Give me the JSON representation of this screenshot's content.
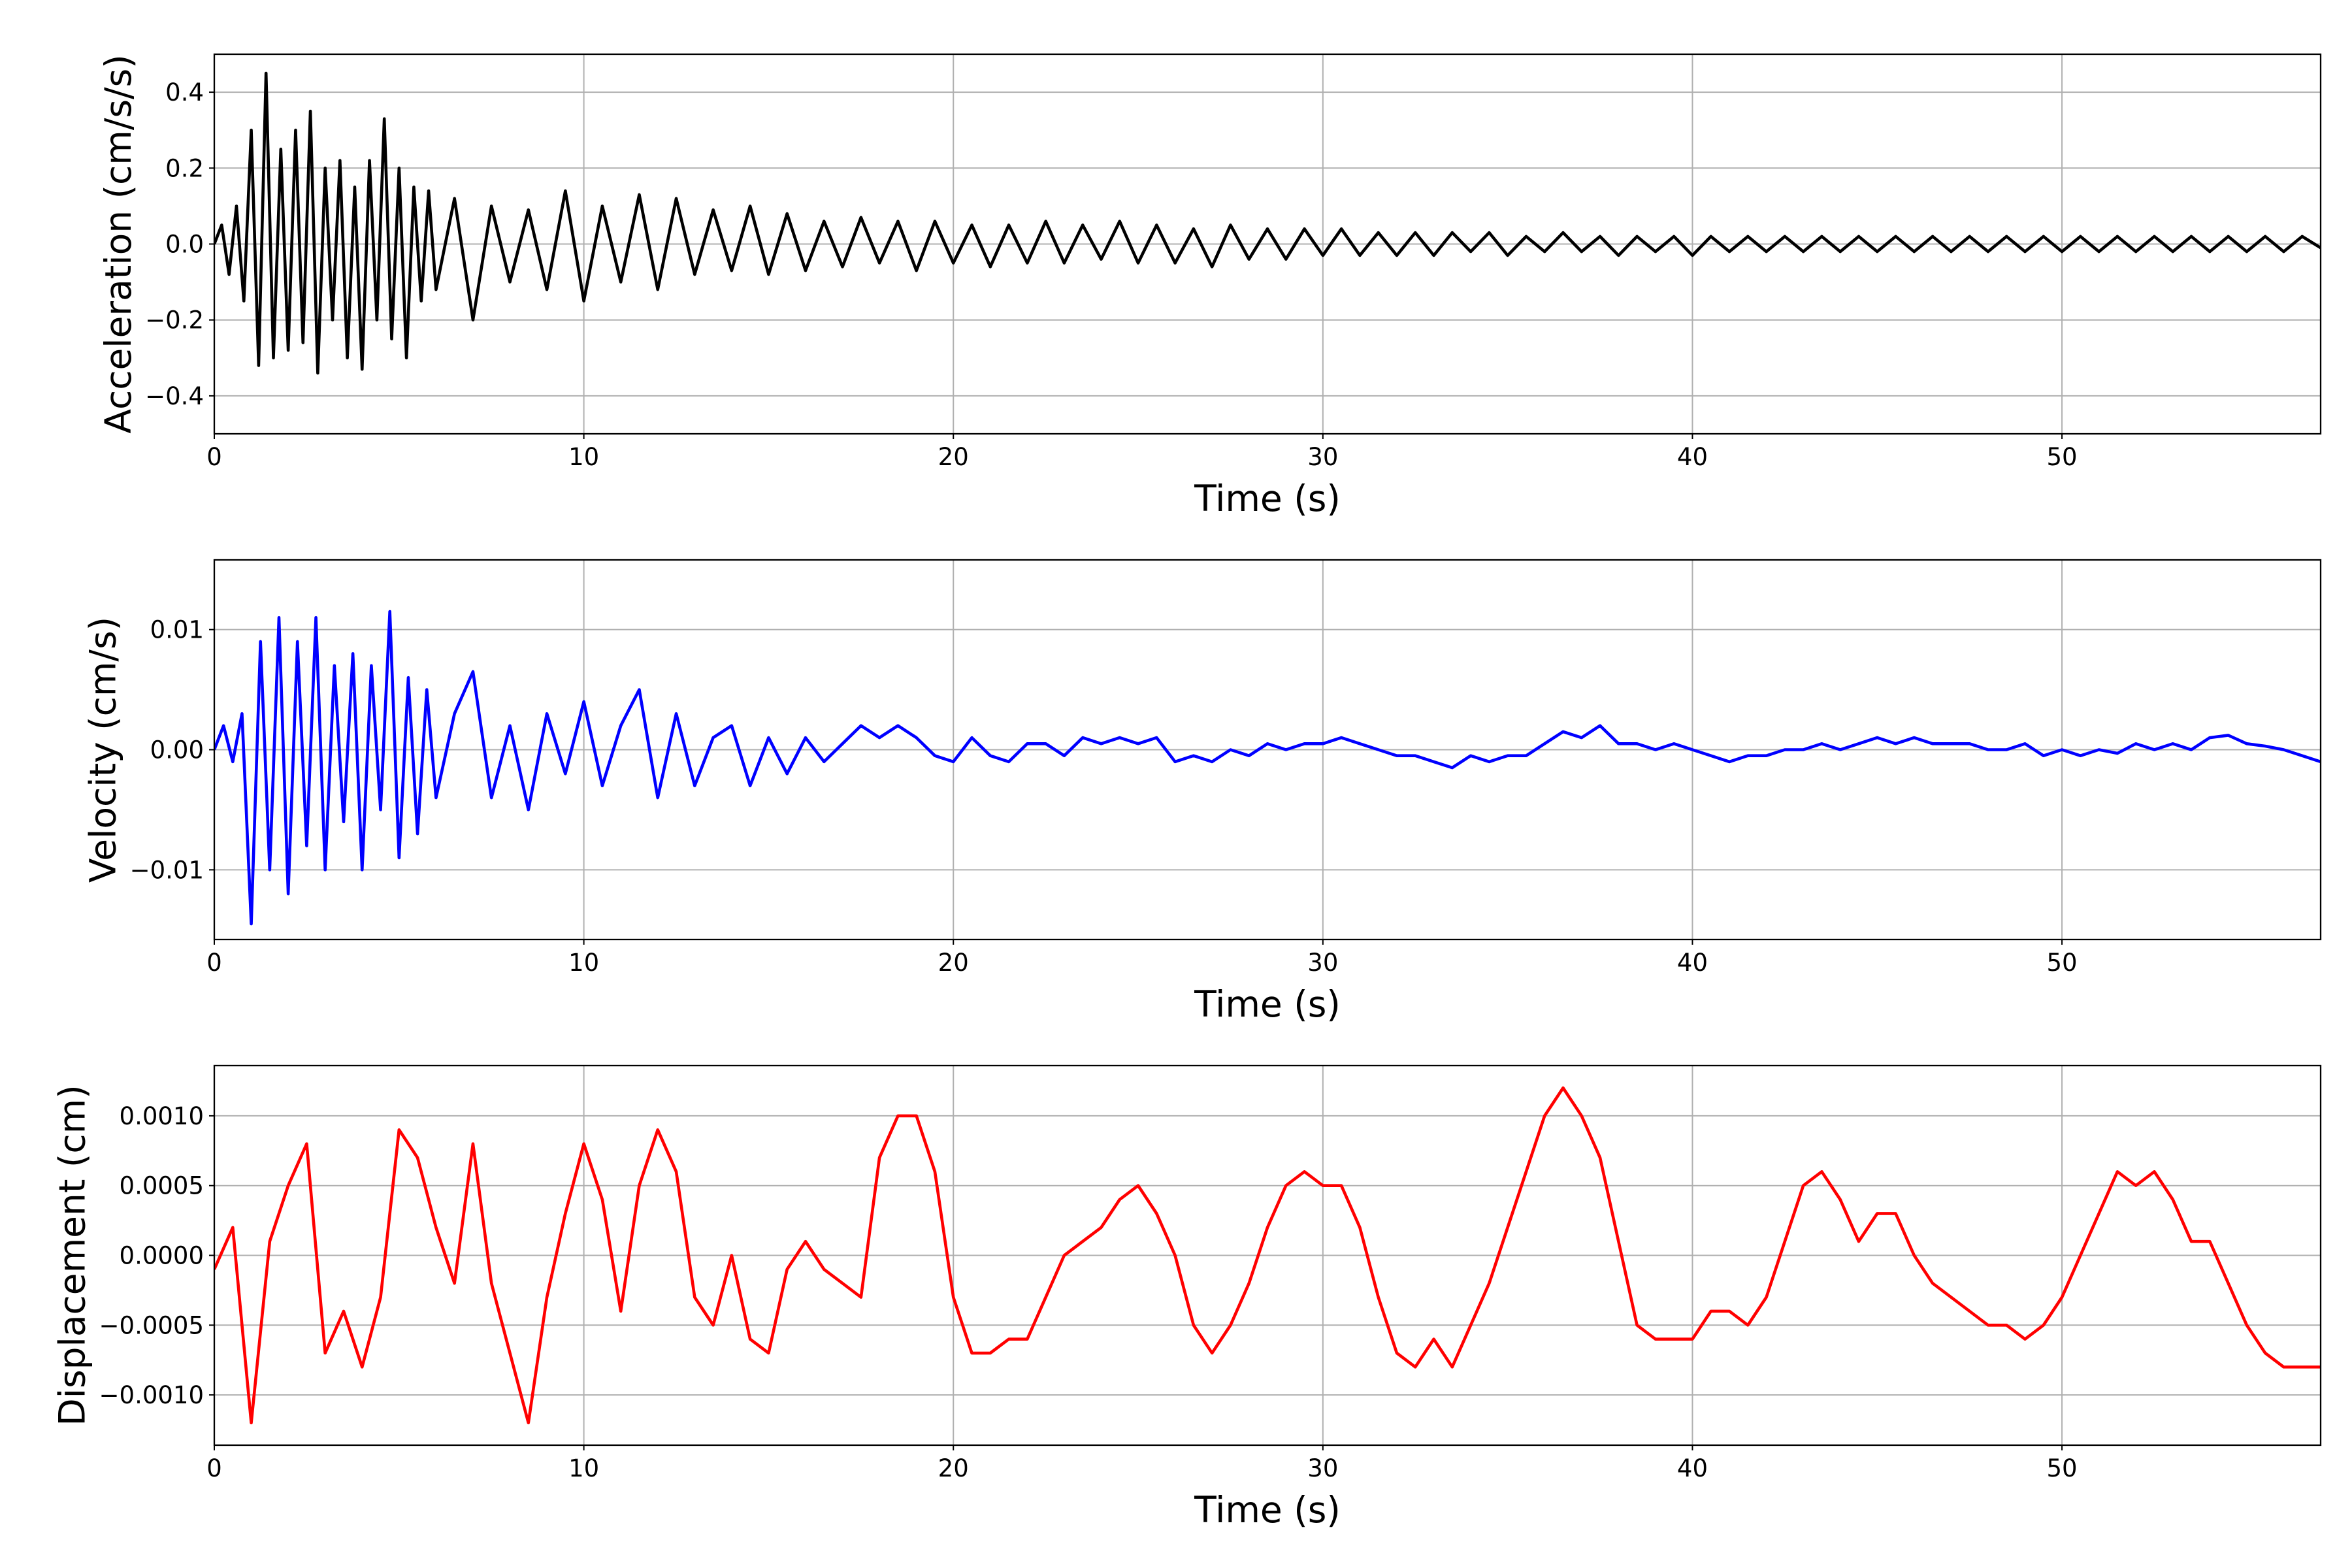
{
  "chart_data": [
    {
      "type": "line",
      "xlabel": "Time (s)",
      "ylabel": "Acceleration (cm/s/s)",
      "color": "#000000",
      "grid": true,
      "xlim": [
        0,
        57
      ],
      "xticks": [
        0,
        10,
        20,
        30,
        40,
        50
      ],
      "ylim": [
        -0.5,
        0.5
      ],
      "yticks": [
        {
          "value": -0.4,
          "label": "−0.4"
        },
        {
          "value": -0.2,
          "label": "−0.2"
        },
        {
          "value": 0,
          "label": "0.0"
        },
        0.2,
        0.4
      ],
      "x": [
        0,
        0.2,
        0.4,
        0.6,
        0.8,
        1.0,
        1.2,
        1.4,
        1.6,
        1.8,
        2.0,
        2.2,
        2.4,
        2.6,
        2.8,
        3.0,
        3.2,
        3.4,
        3.6,
        3.8,
        4.0,
        4.2,
        4.4,
        4.6,
        4.8,
        5.0,
        5.2,
        5.4,
        5.6,
        5.8,
        6.0,
        6.5,
        7,
        7.5,
        8,
        8.5,
        9,
        9.5,
        10,
        10.5,
        11,
        11.5,
        12,
        12.5,
        13,
        13.5,
        14,
        14.5,
        15,
        15.5,
        16,
        16.5,
        17,
        17.5,
        18,
        18.5,
        19,
        19.5,
        20,
        20.5,
        21,
        21.5,
        22,
        22.5,
        23,
        23.5,
        24,
        24.5,
        25,
        25.5,
        26,
        26.5,
        27,
        27.5,
        28,
        28.5,
        29,
        29.5,
        30,
        30.5,
        31,
        31.5,
        32,
        32.5,
        33,
        33.5,
        34,
        34.5,
        35,
        35.5,
        36,
        36.5,
        37,
        37.5,
        38,
        38.5,
        39,
        39.5,
        40,
        40.5,
        41,
        41.5,
        42,
        42.5,
        43,
        43.5,
        44,
        44.5,
        45,
        45.5,
        46,
        46.5,
        47,
        47.5,
        48,
        48.5,
        49,
        49.5,
        50,
        50.5,
        51,
        51.5,
        52,
        52.5,
        53,
        53.5,
        54,
        54.5,
        55,
        55.5,
        56,
        56.5,
        57
      ],
      "values": [
        0.0,
        0.05,
        -0.08,
        0.1,
        -0.15,
        0.3,
        -0.32,
        0.45,
        -0.3,
        0.25,
        -0.28,
        0.3,
        -0.26,
        0.35,
        -0.34,
        0.2,
        -0.2,
        0.22,
        -0.3,
        0.15,
        -0.33,
        0.22,
        -0.2,
        0.33,
        -0.25,
        0.2,
        -0.3,
        0.15,
        -0.15,
        0.14,
        -0.12,
        0.12,
        -0.2,
        0.1,
        -0.1,
        0.09,
        -0.12,
        0.14,
        -0.15,
        0.1,
        -0.1,
        0.13,
        -0.12,
        0.12,
        -0.08,
        0.09,
        -0.07,
        0.1,
        -0.08,
        0.08,
        -0.07,
        0.06,
        -0.06,
        0.07,
        -0.05,
        0.06,
        -0.07,
        0.06,
        -0.05,
        0.05,
        -0.06,
        0.05,
        -0.05,
        0.06,
        -0.05,
        0.05,
        -0.04,
        0.06,
        -0.05,
        0.05,
        -0.05,
        0.04,
        -0.06,
        0.05,
        -0.04,
        0.04,
        -0.04,
        0.04,
        -0.03,
        0.04,
        -0.03,
        0.03,
        -0.03,
        0.03,
        -0.03,
        0.03,
        -0.02,
        0.03,
        -0.03,
        0.02,
        -0.02,
        0.03,
        -0.02,
        0.02,
        -0.03,
        0.02,
        -0.02,
        0.02,
        -0.03,
        0.02,
        -0.02,
        0.02,
        -0.02,
        0.02,
        -0.02,
        0.02,
        -0.02,
        0.02,
        -0.02,
        0.02,
        -0.02,
        0.02,
        -0.02,
        0.02,
        -0.02,
        0.02,
        -0.02,
        0.02,
        -0.02,
        0.02,
        -0.02,
        0.02,
        -0.02,
        0.02,
        -0.02,
        0.02,
        -0.02,
        0.02,
        -0.02,
        0.02,
        -0.02,
        0.02,
        -0.01
      ]
    },
    {
      "type": "line",
      "xlabel": "Time (s)",
      "ylabel": "Velocity (cm/s)",
      "color": "#0000ff",
      "grid": true,
      "xlim": [
        0,
        57
      ],
      "xticks": [
        0,
        10,
        20,
        30,
        40,
        50
      ],
      "ylim": [
        -0.0158,
        0.0158
      ],
      "yticks": [
        {
          "value": -0.01,
          "label": "−0.01"
        },
        {
          "value": 0,
          "label": "0.00"
        },
        0.01
      ],
      "x": [
        0,
        0.25,
        0.5,
        0.75,
        1.0,
        1.25,
        1.5,
        1.75,
        2.0,
        2.25,
        2.5,
        2.75,
        3.0,
        3.25,
        3.5,
        3.75,
        4.0,
        4.25,
        4.5,
        4.75,
        5.0,
        5.25,
        5.5,
        5.75,
        6.0,
        6.5,
        7,
        7.5,
        8,
        8.5,
        9,
        9.5,
        10,
        10.5,
        11,
        11.5,
        12,
        12.5,
        13,
        13.5,
        14,
        14.5,
        15,
        15.5,
        16,
        16.5,
        17,
        17.5,
        18,
        18.5,
        19,
        19.5,
        20,
        20.5,
        21,
        21.5,
        22,
        22.5,
        23,
        23.5,
        24,
        24.5,
        25,
        25.5,
        26,
        26.5,
        27,
        27.5,
        28,
        28.5,
        29,
        29.5,
        30,
        30.5,
        31,
        31.5,
        32,
        32.5,
        33,
        33.5,
        34,
        34.5,
        35,
        35.5,
        36,
        36.5,
        37,
        37.5,
        38,
        38.5,
        39,
        39.5,
        40,
        40.5,
        41,
        41.5,
        42,
        42.5,
        43,
        43.5,
        44,
        44.5,
        45,
        45.5,
        46,
        46.5,
        47,
        47.5,
        48,
        48.5,
        49,
        49.5,
        50,
        50.5,
        51,
        51.5,
        52,
        52.5,
        53,
        53.5,
        54,
        54.5,
        55,
        55.5,
        56,
        56.5,
        57
      ],
      "values": [
        0,
        0.002,
        -0.001,
        0.003,
        -0.0145,
        0.009,
        -0.01,
        0.011,
        -0.012,
        0.009,
        -0.008,
        0.011,
        -0.01,
        0.007,
        -0.006,
        0.008,
        -0.01,
        0.007,
        -0.005,
        0.0115,
        -0.009,
        0.006,
        -0.007,
        0.005,
        -0.004,
        0.003,
        0.0065,
        -0.004,
        0.002,
        -0.005,
        0.003,
        -0.002,
        0.004,
        -0.003,
        0.002,
        0.005,
        -0.004,
        0.003,
        -0.003,
        0.001,
        0.002,
        -0.003,
        0.001,
        -0.002,
        0.001,
        -0.001,
        0.0005,
        0.002,
        0.001,
        0.002,
        0.001,
        -0.0005,
        -0.001,
        0.001,
        -0.0005,
        -0.001,
        0.0005,
        0.0005,
        -0.0005,
        0.001,
        0.0005,
        0.001,
        0.0005,
        0.001,
        -0.001,
        -0.0005,
        -0.001,
        0,
        -0.0005,
        0.0005,
        0,
        0.0005,
        0.0005,
        0.001,
        0.0005,
        0,
        -0.0005,
        -0.0005,
        -0.001,
        -0.0015,
        -0.0005,
        -0.001,
        -0.0005,
        -0.0005,
        0.0005,
        0.0015,
        0.001,
        0.002,
        0.0005,
        0.0005,
        0,
        0.0005,
        0,
        -0.0005,
        -0.001,
        -0.0005,
        -0.0005,
        0,
        0,
        0.0005,
        0,
        0.0005,
        0.001,
        0.0005,
        0.001,
        0.0005,
        0.0005,
        0.0005,
        0,
        0,
        0.0005,
        -0.0005,
        0,
        -0.0005,
        0,
        -0.0003,
        0.0005,
        0,
        0.0005,
        0,
        0.001,
        0.0012,
        0.0005,
        0.0003,
        0,
        -0.0005,
        -0.001
      ]
    },
    {
      "type": "line",
      "xlabel": "Time (s)",
      "ylabel": "Displacement (cm)",
      "color": "#ff0000",
      "grid": true,
      "xlim": [
        0,
        57
      ],
      "xticks": [
        0,
        10,
        20,
        30,
        40,
        50
      ],
      "ylim": [
        -0.00136,
        0.00136
      ],
      "yticks": [
        {
          "value": -0.001,
          "label": "−0.0010"
        },
        {
          "value": -0.0005,
          "label": "−0.0005"
        },
        {
          "value": 0,
          "label": "0.0000"
        },
        {
          "value": 0.0005,
          "label": "0.0005"
        },
        {
          "value": 0.001,
          "label": "0.0010"
        }
      ],
      "x": [
        0,
        0.5,
        1,
        1.5,
        2,
        2.5,
        3,
        3.5,
        4,
        4.5,
        5,
        5.5,
        6,
        6.5,
        7,
        7.5,
        8,
        8.5,
        9,
        9.5,
        10,
        10.5,
        11,
        11.5,
        12,
        12.5,
        13,
        13.5,
        14,
        14.5,
        15,
        15.5,
        16,
        16.5,
        17,
        17.5,
        18,
        18.5,
        19,
        19.5,
        20,
        20.5,
        21,
        21.5,
        22,
        22.5,
        23,
        23.5,
        24,
        24.5,
        25,
        25.5,
        26,
        26.5,
        27,
        27.5,
        28,
        28.5,
        29,
        29.5,
        30,
        30.5,
        31,
        31.5,
        32,
        32.5,
        33,
        33.5,
        34,
        34.5,
        35,
        35.5,
        36,
        36.5,
        37,
        37.5,
        38,
        38.5,
        39,
        39.5,
        40,
        40.5,
        41,
        41.5,
        42,
        42.5,
        43,
        43.5,
        44,
        44.5,
        45,
        45.5,
        46,
        46.5,
        47,
        47.5,
        48,
        48.5,
        49,
        49.5,
        50,
        50.5,
        51,
        51.5,
        52,
        52.5,
        53,
        53.5,
        54,
        54.5,
        55,
        55.5,
        56,
        56.5,
        57
      ],
      "values": [
        -0.0001,
        0.0002,
        -0.0012,
        0.0001,
        0.0005,
        0.0008,
        -0.0007,
        -0.0004,
        -0.0008,
        -0.0003,
        0.0009,
        0.0007,
        0.0002,
        -0.0002,
        0.0008,
        -0.0002,
        -0.0007,
        -0.0012,
        -0.0003,
        0.0003,
        0.0008,
        0.0004,
        -0.0004,
        0.0005,
        0.0009,
        0.0006,
        -0.0003,
        -0.0005,
        0,
        -0.0006,
        -0.0007,
        -0.0001,
        0.0001,
        -0.0001,
        -0.0002,
        -0.0003,
        0.0007,
        0.001,
        0.001,
        0.0006,
        -0.0003,
        -0.0007,
        -0.0007,
        -0.0006,
        -0.0006,
        -0.0003,
        0,
        0.0001,
        0.0002,
        0.0004,
        0.0005,
        0.0003,
        0,
        -0.0005,
        -0.0007,
        -0.0005,
        -0.0002,
        0.0002,
        0.0005,
        0.0006,
        0.0005,
        0.0005,
        0.0002,
        -0.0003,
        -0.0007,
        -0.0008,
        -0.0006,
        -0.0008,
        -0.0005,
        -0.0002,
        0.0002,
        0.0006,
        0.001,
        0.0012,
        0.001,
        0.0007,
        0.0001,
        -0.0005,
        -0.0006,
        -0.0006,
        -0.0006,
        -0.0004,
        -0.0004,
        -0.0005,
        -0.0003,
        0.0001,
        0.0005,
        0.0006,
        0.0004,
        0.0001,
        0.0003,
        0.0003,
        0,
        -0.0002,
        -0.0003,
        -0.0004,
        -0.0005,
        -0.0005,
        -0.0006,
        -0.0005,
        -0.0003,
        0,
        0.0003,
        0.0006,
        0.0005,
        0.0006,
        0.0004,
        0.0001,
        0.0001,
        -0.0002,
        -0.0005,
        -0.0007,
        -0.0008,
        -0.0008,
        -0.0008
      ]
    }
  ]
}
